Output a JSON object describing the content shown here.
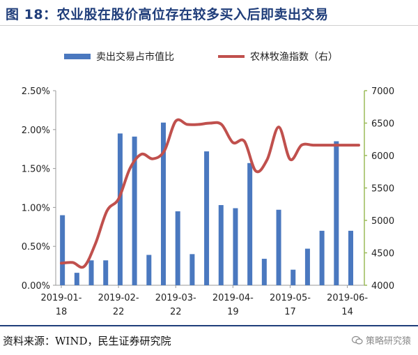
{
  "header": {
    "title": "图 18：农业股在股价高位存在较多买入后即卖出交易"
  },
  "footer": {
    "source": "资料来源：WIND，民生证券研究院",
    "watermark": "策略研究猿",
    "watermark_icon": "wechat-icon"
  },
  "colors": {
    "bar": "#4a78bf",
    "line": "#c0504d",
    "left_axis": "#9a9a9a",
    "right_axis": "#9bbb59"
  },
  "chart_data": {
    "type": "bar",
    "title": "",
    "legend_position": "top",
    "x_ticks": [
      "2019-01-\n18",
      "2019-02-\n22",
      "2019-03-\n22",
      "2019-04-\n19",
      "2019-05-\n17",
      "2019-06-\n14"
    ],
    "x_tick_positions": [
      0,
      5,
      10,
      15,
      20,
      25
    ],
    "bar_series": {
      "name": "卖出交易占市值比",
      "axis": "left",
      "values": [
        0.009,
        0.0016,
        0.0032,
        0.0032,
        0.0195,
        0.0191,
        0.0039,
        0.0209,
        0.0095,
        0.004,
        0.0172,
        0.0103,
        0.0099,
        0.0157,
        0.0034,
        0.0097,
        0.002,
        0.0047,
        0.007,
        0.0185,
        0.007
      ]
    },
    "line_series": {
      "name": "农林牧渔指数（右）",
      "axis": "right",
      "x": [
        0,
        1,
        2,
        3,
        4,
        5,
        6,
        7,
        8,
        9,
        10,
        11,
        12,
        13,
        14,
        15,
        16,
        17,
        18,
        19,
        20,
        21,
        22,
        23,
        24,
        25,
        26
      ],
      "values": [
        4340,
        4350,
        4290,
        4650,
        5150,
        5330,
        5800,
        6020,
        5950,
        6070,
        6530,
        6480,
        6480,
        6500,
        6480,
        6200,
        6220,
        5760,
        5940,
        6440,
        5940,
        6160,
        6160,
        6160,
        6160,
        6160,
        6160
      ]
    },
    "left_axis": {
      "ylim": [
        0,
        0.025
      ],
      "ticks": [
        "0.00%",
        "0.50%",
        "1.00%",
        "1.50%",
        "2.00%",
        "2.50%"
      ]
    },
    "right_axis": {
      "ylim": [
        4000,
        7000
      ],
      "ticks": [
        "4000",
        "4500",
        "5000",
        "5500",
        "6000",
        "6500",
        "7000"
      ]
    },
    "grid": false
  }
}
